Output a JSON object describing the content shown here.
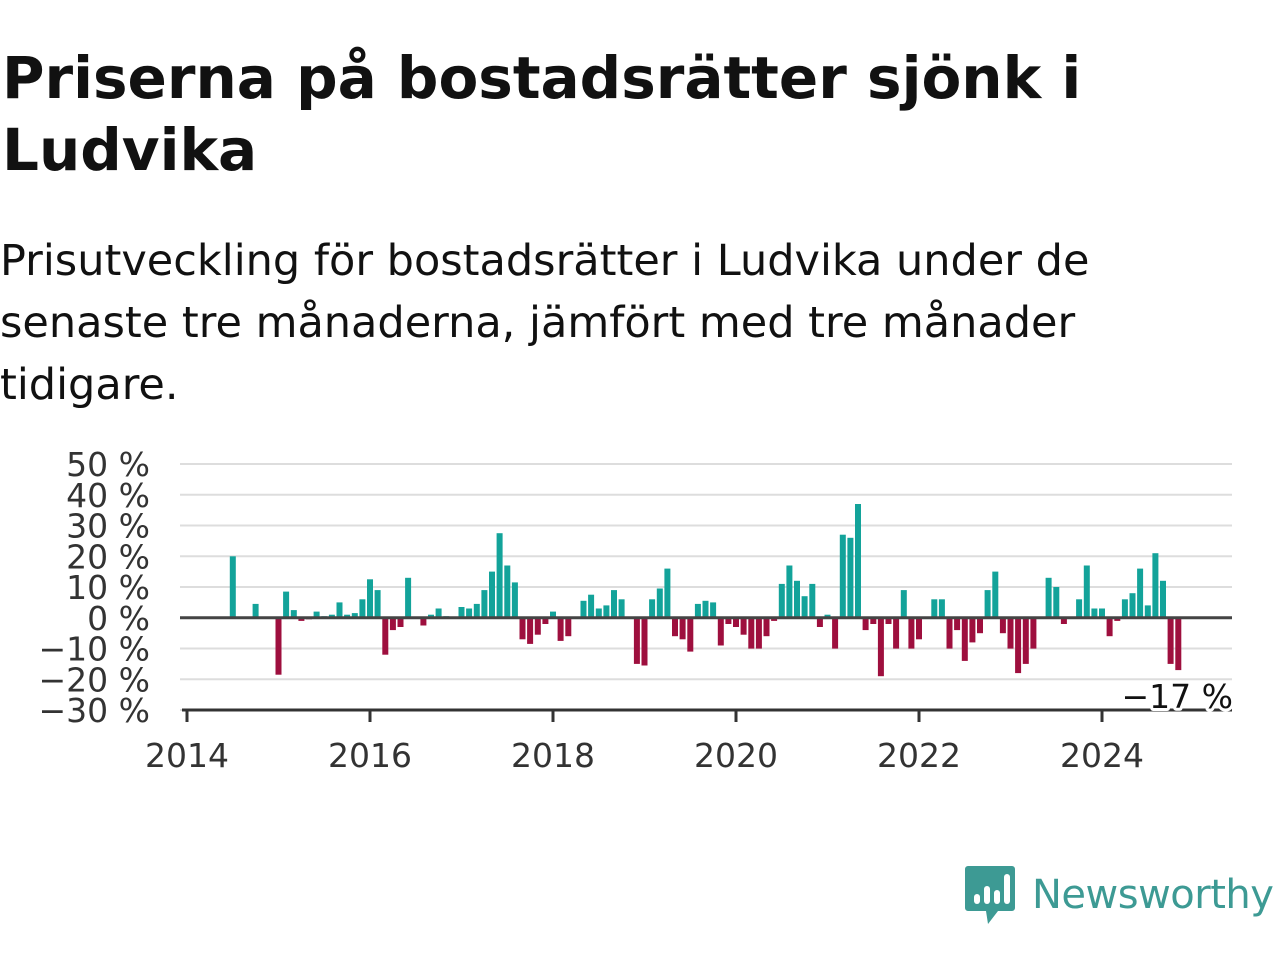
{
  "title": "Priserna på bostadsrätter sjönk i Ludvika",
  "subtitle": "Prisutveckling för bostadsrätter i Ludvika under de senaste tre månaderna, jämfört med tre månader tidigare.",
  "logo_text": "Newsworthy",
  "colors": {
    "positive": "#13a39a",
    "negative": "#9e0f3e",
    "grid": "#dddddd",
    "zero_line": "#444444",
    "logo": "#3d9a94"
  },
  "chart_data": {
    "type": "bar",
    "title": "Priserna på bostadsrätter sjönk i Ludvika",
    "xlabel": "",
    "ylabel": "",
    "y_unit": "%",
    "ylim": [
      -30,
      50
    ],
    "yticks": [
      50,
      40,
      30,
      20,
      10,
      0,
      -10,
      -20,
      -30
    ],
    "ytick_labels": [
      "50 %",
      "40 %",
      "30 %",
      "20 %",
      "10 %",
      "0 %",
      "−10 %",
      "−20 %",
      "−30 %"
    ],
    "xticks": [
      "2014",
      "2016",
      "2018",
      "2020",
      "2022",
      "2024"
    ],
    "grid": true,
    "legend": "none",
    "annotation": {
      "text": "−17 %",
      "date": "2024-11",
      "value": -17
    },
    "series": [
      {
        "values": [
          {
            "date": "2014-07",
            "value": 20
          },
          {
            "date": "2014-10",
            "value": 4.5
          },
          {
            "date": "2015-01",
            "value": -18.5
          },
          {
            "date": "2015-02",
            "value": 8.5
          },
          {
            "date": "2015-03",
            "value": 2.5
          },
          {
            "date": "2015-04",
            "value": -1
          },
          {
            "date": "2015-05",
            "value": -0.5
          },
          {
            "date": "2015-06",
            "value": 2
          },
          {
            "date": "2015-07",
            "value": 0.5
          },
          {
            "date": "2015-08",
            "value": 1
          },
          {
            "date": "2015-09",
            "value": 5
          },
          {
            "date": "2015-10",
            "value": 1
          },
          {
            "date": "2015-11",
            "value": 1.5
          },
          {
            "date": "2015-12",
            "value": 6
          },
          {
            "date": "2016-01",
            "value": 12.5
          },
          {
            "date": "2016-02",
            "value": 9
          },
          {
            "date": "2016-03",
            "value": -12
          },
          {
            "date": "2016-04",
            "value": -4
          },
          {
            "date": "2016-05",
            "value": -3
          },
          {
            "date": "2016-06",
            "value": 13
          },
          {
            "date": "2016-08",
            "value": -2.5
          },
          {
            "date": "2016-09",
            "value": 1
          },
          {
            "date": "2016-10",
            "value": 3
          },
          {
            "date": "2016-11",
            "value": 0.5
          },
          {
            "date": "2017-01",
            "value": 3.5
          },
          {
            "date": "2017-02",
            "value": 3
          },
          {
            "date": "2017-03",
            "value": 4.5
          },
          {
            "date": "2017-04",
            "value": 9
          },
          {
            "date": "2017-05",
            "value": 15
          },
          {
            "date": "2017-06",
            "value": 27.5
          },
          {
            "date": "2017-07",
            "value": 17
          },
          {
            "date": "2017-08",
            "value": 11.5
          },
          {
            "date": "2017-09",
            "value": -7
          },
          {
            "date": "2017-10",
            "value": -8.5
          },
          {
            "date": "2017-11",
            "value": -5.5
          },
          {
            "date": "2017-12",
            "value": -2
          },
          {
            "date": "2018-01",
            "value": 2
          },
          {
            "date": "2018-02",
            "value": -7.5
          },
          {
            "date": "2018-03",
            "value": -6
          },
          {
            "date": "2018-05",
            "value": 5.5
          },
          {
            "date": "2018-06",
            "value": 7.5
          },
          {
            "date": "2018-07",
            "value": 3
          },
          {
            "date": "2018-08",
            "value": 4
          },
          {
            "date": "2018-09",
            "value": 9
          },
          {
            "date": "2018-10",
            "value": 6
          },
          {
            "date": "2018-12",
            "value": -15
          },
          {
            "date": "2019-01",
            "value": -15.5
          },
          {
            "date": "2019-02",
            "value": 6
          },
          {
            "date": "2019-03",
            "value": 9.5
          },
          {
            "date": "2019-04",
            "value": 16
          },
          {
            "date": "2019-05",
            "value": -6
          },
          {
            "date": "2019-06",
            "value": -7
          },
          {
            "date": "2019-07",
            "value": -11
          },
          {
            "date": "2019-08",
            "value": 4.5
          },
          {
            "date": "2019-09",
            "value": 5.5
          },
          {
            "date": "2019-10",
            "value": 5
          },
          {
            "date": "2019-11",
            "value": -9
          },
          {
            "date": "2019-12",
            "value": -2
          },
          {
            "date": "2020-01",
            "value": -3
          },
          {
            "date": "2020-02",
            "value": -5.5
          },
          {
            "date": "2020-03",
            "value": -10
          },
          {
            "date": "2020-04",
            "value": -10
          },
          {
            "date": "2020-05",
            "value": -6
          },
          {
            "date": "2020-06",
            "value": -1
          },
          {
            "date": "2020-07",
            "value": 11
          },
          {
            "date": "2020-08",
            "value": 17
          },
          {
            "date": "2020-09",
            "value": 12
          },
          {
            "date": "2020-10",
            "value": 7
          },
          {
            "date": "2020-11",
            "value": 11
          },
          {
            "date": "2020-12",
            "value": -3
          },
          {
            "date": "2021-01",
            "value": 1
          },
          {
            "date": "2021-02",
            "value": -10
          },
          {
            "date": "2021-03",
            "value": 27
          },
          {
            "date": "2021-04",
            "value": 26
          },
          {
            "date": "2021-05",
            "value": 37
          },
          {
            "date": "2021-06",
            "value": -4
          },
          {
            "date": "2021-07",
            "value": -2
          },
          {
            "date": "2021-08",
            "value": -19
          },
          {
            "date": "2021-09",
            "value": -2
          },
          {
            "date": "2021-10",
            "value": -10
          },
          {
            "date": "2021-11",
            "value": 9
          },
          {
            "date": "2021-12",
            "value": -10
          },
          {
            "date": "2022-01",
            "value": -7
          },
          {
            "date": "2022-03",
            "value": 6
          },
          {
            "date": "2022-04",
            "value": 6
          },
          {
            "date": "2022-05",
            "value": -10
          },
          {
            "date": "2022-06",
            "value": -4
          },
          {
            "date": "2022-07",
            "value": -14
          },
          {
            "date": "2022-08",
            "value": -8
          },
          {
            "date": "2022-09",
            "value": -5
          },
          {
            "date": "2022-10",
            "value": 9
          },
          {
            "date": "2022-11",
            "value": 15
          },
          {
            "date": "2022-12",
            "value": -5
          },
          {
            "date": "2023-01",
            "value": -10
          },
          {
            "date": "2023-02",
            "value": -18
          },
          {
            "date": "2023-03",
            "value": -15
          },
          {
            "date": "2023-04",
            "value": -10
          },
          {
            "date": "2023-06",
            "value": 13
          },
          {
            "date": "2023-07",
            "value": 10
          },
          {
            "date": "2023-08",
            "value": -2
          },
          {
            "date": "2023-10",
            "value": 6
          },
          {
            "date": "2023-11",
            "value": 17
          },
          {
            "date": "2023-12",
            "value": 3
          },
          {
            "date": "2024-01",
            "value": 3
          },
          {
            "date": "2024-02",
            "value": -6
          },
          {
            "date": "2024-03",
            "value": -1
          },
          {
            "date": "2024-04",
            "value": 6
          },
          {
            "date": "2024-05",
            "value": 8
          },
          {
            "date": "2024-06",
            "value": 16
          },
          {
            "date": "2024-07",
            "value": 4
          },
          {
            "date": "2024-08",
            "value": 21
          },
          {
            "date": "2024-09",
            "value": 12
          },
          {
            "date": "2024-10",
            "value": -15
          },
          {
            "date": "2024-11",
            "value": -17
          }
        ]
      }
    ]
  }
}
